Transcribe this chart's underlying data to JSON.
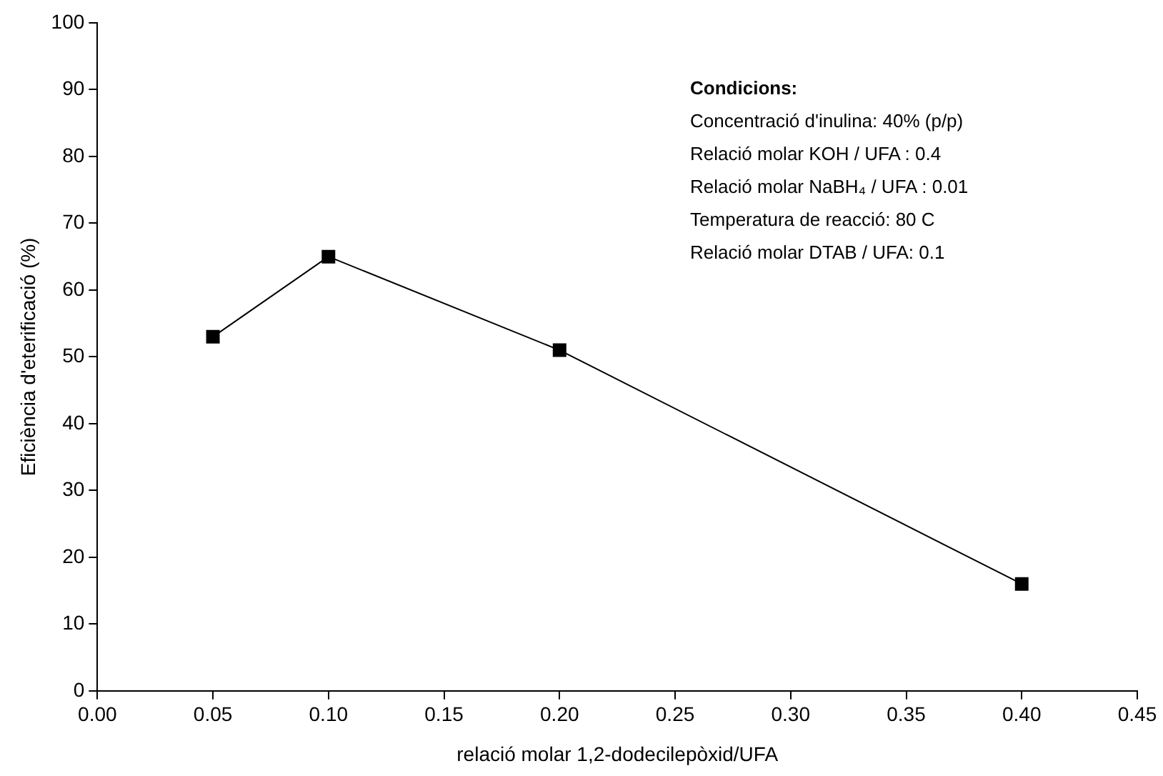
{
  "chart_data": {
    "type": "line",
    "xlabel": "relació molar 1,2-dodecilepòxid/UFA",
    "ylabel": "Eficiència d'eterificació (%)",
    "x": [
      0.05,
      0.1,
      0.2,
      0.4
    ],
    "series": [
      {
        "color": "#000000",
        "values": [
          53,
          65,
          51,
          16
        ]
      }
    ],
    "xlim": [
      0,
      0.45
    ],
    "xticks": [
      {
        "value": 0,
        "label": "0.00"
      },
      {
        "value": 0.05,
        "label": "0.05"
      },
      {
        "value": 0.1,
        "label": "0.10"
      },
      {
        "value": 0.15,
        "label": "0.15"
      },
      {
        "value": 0.2,
        "label": "0.20"
      },
      {
        "value": 0.25,
        "label": "0.25"
      },
      {
        "value": 0.3,
        "label": "0.30"
      },
      {
        "value": 0.35,
        "label": "0.35"
      },
      {
        "value": 0.4,
        "label": "0.40"
      },
      {
        "value": 0.45,
        "label": "0.45"
      }
    ],
    "ylim": [
      0,
      100
    ],
    "yticks": [
      0,
      10,
      20,
      30,
      40,
      50,
      60,
      70,
      80,
      90,
      100
    ],
    "marker": "square",
    "line_style": "solid",
    "grid": false,
    "legend": false,
    "annotations": [
      "Condicions:",
      "Concentració d'inulina: 40% (p/p)",
      "Relació molar KOH / UFA : 0.4",
      "Relació molar NaBH₄ / UFA : 0.01",
      "Temperatura de reacció: 80 C",
      "Relació molar DTAB / UFA: 0.1"
    ]
  }
}
